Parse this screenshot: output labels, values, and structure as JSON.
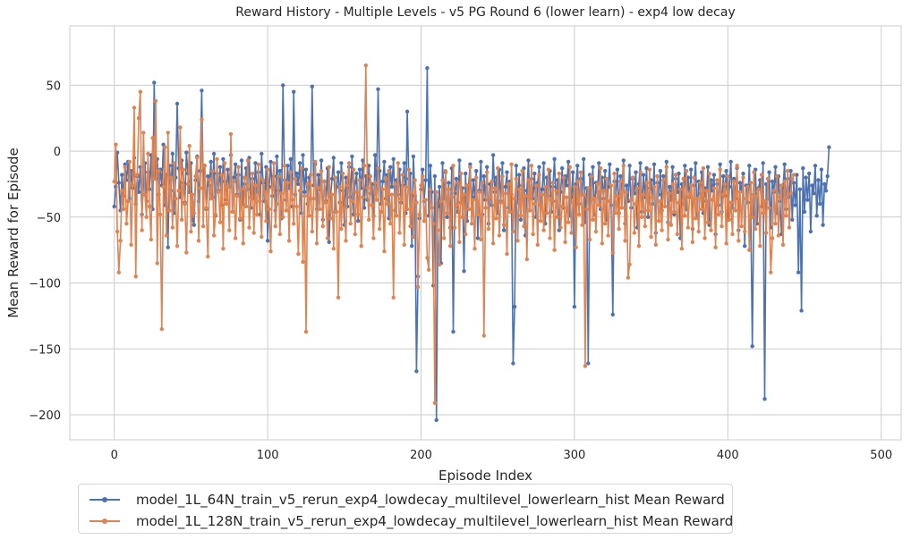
{
  "chart_data": {
    "type": "line",
    "title": "Reward History - Multiple Levels - v5 PG Round 6 (lower learn) - exp4 low decay",
    "xlabel": "Episode Index",
    "ylabel": "Mean Reward for Episode",
    "xlim": [
      -29,
      513
    ],
    "ylim": [
      -219,
      95
    ],
    "xticks": [
      0,
      100,
      200,
      300,
      400,
      500
    ],
    "yticks": [
      -200,
      -150,
      -100,
      -50,
      0,
      50
    ],
    "grid": true,
    "legend_position": "below-left",
    "series": [
      {
        "name": "model_1L_64N_train_v5_rerun_exp4_lowdecay_multilevel_lowerlearn_hist Mean Reward",
        "color": "#4c72b0",
        "values": [
          -42,
          -27,
          -1,
          -24,
          -45,
          -18,
          -34,
          -10,
          -22,
          -8,
          -36,
          -15,
          -28,
          -5,
          -40,
          -19,
          -31,
          -12,
          -48,
          -25,
          -9,
          -38,
          -16,
          -29,
          -3,
          -44,
          52,
          -21,
          -6,
          -33,
          -14,
          -26,
          5,
          -41,
          -18,
          -73,
          -11,
          -30,
          -2,
          -47,
          -20,
          36,
          -13,
          -35,
          -7,
          -24,
          -39,
          -1,
          -17,
          -31,
          -9,
          -52,
          -56,
          -22,
          -4,
          -38,
          -15,
          46,
          -28,
          -11,
          -44,
          -19,
          -26,
          -8,
          -35,
          -2,
          -49,
          -17,
          -30,
          -12,
          -41,
          -6,
          -23,
          -37,
          -14,
          -27,
          -3,
          -46,
          -20,
          -10,
          -33,
          -18,
          -52,
          -7,
          -40,
          -25,
          -13,
          -29,
          -5,
          -43,
          -21,
          -36,
          -9,
          -31,
          -16,
          -48,
          -2,
          -24,
          -38,
          -12,
          -68,
          -27,
          -8,
          -34,
          -19,
          -45,
          -4,
          -30,
          -15,
          -51,
          50,
          -22,
          -37,
          -11,
          -28,
          -6,
          -42,
          45,
          -33,
          -17,
          -25,
          -9,
          -47,
          -3,
          -31,
          -14,
          -40,
          -20,
          -36,
          49,
          -26,
          -10,
          -44,
          -18,
          -29,
          -7,
          -52,
          -23,
          -38,
          -13,
          -69,
          -34,
          -21,
          -5,
          -46,
          -27,
          -16,
          -39,
          -9,
          -30,
          -56,
          -20,
          -42,
          -12,
          -35,
          -4,
          -48,
          -24,
          -17,
          -53,
          -14,
          -28,
          -7,
          -43,
          -19,
          -37,
          -11,
          -32,
          -25,
          -49,
          -3,
          -29,
          47,
          -15,
          -40,
          -23,
          -8,
          -36,
          -18,
          -51,
          -12,
          -27,
          -6,
          -45,
          -22,
          -33,
          -14,
          -39,
          -26,
          -9,
          -47,
          30,
          -21,
          -17,
          -72,
          -4,
          -34,
          -167,
          -95,
          -51,
          -29,
          -14,
          -38,
          -22,
          63,
          -49,
          -11,
          -31,
          -102,
          -19,
          -204,
          -42,
          -27,
          -85,
          -9,
          -36,
          -16,
          -50,
          -24,
          -58,
          -13,
          -137,
          -32,
          -21,
          -46,
          -7,
          -39,
          -28,
          -91,
          -17,
          -53,
          -26,
          -10,
          -44,
          -22,
          -35,
          -15,
          -66,
          -30,
          -8,
          -48,
          -19,
          -37,
          -12,
          -55,
          -25,
          -41,
          -3,
          -31,
          -20,
          -47,
          -14,
          -38,
          -9,
          -60,
          -27,
          -16,
          -43,
          -23,
          -33,
          -161,
          -118,
          -11,
          -39,
          -18,
          -52,
          -26,
          -13,
          -64,
          -30,
          -7,
          -45,
          -21,
          -36,
          -17,
          -50,
          -24,
          -12,
          -41,
          -29,
          -9,
          -55,
          -20,
          -34,
          -15,
          -46,
          -27,
          -6,
          -38,
          -22,
          -60,
          -31,
          -13,
          -43,
          -19,
          -26,
          -8,
          -49,
          -35,
          -16,
          -118,
          -25,
          -11,
          -40,
          -21,
          -33,
          -6,
          -54,
          -28,
          -161,
          -18,
          -37,
          -12,
          -48,
          -24,
          -31,
          -9,
          -44,
          -20,
          -36,
          -15,
          -52,
          -27,
          -10,
          -41,
          -124,
          -23,
          -34,
          -14,
          -47,
          -19,
          -29,
          -7,
          -55,
          -26,
          -38,
          -11,
          -43,
          -21,
          -32,
          -16,
          -58,
          -25,
          -9,
          -46,
          -18,
          -35,
          -13,
          -50,
          -28,
          -22,
          -40,
          -10,
          -62,
          -24,
          -33,
          -15,
          -45,
          -19,
          -29,
          -8,
          -54,
          -27,
          -37,
          -12,
          -48,
          -21,
          -31,
          -17,
          -66,
          -25,
          -40,
          -11,
          -44,
          -20,
          -35,
          -14,
          -59,
          -26,
          -9,
          -50,
          -23,
          -32,
          -16,
          -47,
          -28,
          -38,
          -12,
          -56,
          -22,
          -30,
          -18,
          -63,
          -25,
          -41,
          -10,
          -46,
          -19,
          -34,
          -15,
          -52,
          -27,
          -8,
          -43,
          -21,
          -36,
          -13,
          -60,
          -24,
          -30,
          -17,
          -72,
          -26,
          -39,
          -11,
          -49,
          -148,
          -33,
          -14,
          -55,
          -28,
          -22,
          -42,
          -9,
          -188,
          -25,
          -36,
          -16,
          -58,
          -23,
          -31,
          -12,
          -47,
          -19,
          -38,
          -63,
          -27,
          -10,
          -44,
          -21,
          -35,
          -15,
          -52,
          -24,
          -41,
          -18,
          -92,
          -29,
          -121,
          -13,
          -46,
          -20,
          -37,
          -17,
          -61,
          -26,
          -32,
          -11,
          -49,
          -22,
          -40,
          -14,
          -56,
          -25,
          -30,
          -19,
          3
        ]
      },
      {
        "name": "model_1L_128N_train_v5_rerun_exp4_lowdecay_multilevel_lowerlearn_hist Mean Reward",
        "color": "#dd8452",
        "values": [
          -23,
          5,
          -61,
          -92,
          -68,
          -30,
          -44,
          -12,
          -55,
          -38,
          -8,
          -71,
          -26,
          33,
          -95,
          -18,
          25,
          45,
          -60,
          14,
          -33,
          -50,
          -2,
          -42,
          -67,
          10,
          -21,
          38,
          -85,
          -15,
          -48,
          -135,
          -27,
          3,
          -64,
          14,
          -45,
          -20,
          -58,
          -9,
          -36,
          -72,
          -30,
          18,
          -52,
          -14,
          -40,
          -77,
          -25,
          4,
          -61,
          -33,
          -47,
          -19,
          -5,
          -68,
          -28,
          24,
          -57,
          -11,
          -43,
          -80,
          -22,
          -36,
          -15,
          -64,
          -48,
          -6,
          -31,
          -54,
          -18,
          -74,
          -9,
          -40,
          -27,
          -60,
          13,
          -46,
          -23,
          -66,
          -34,
          -12,
          -51,
          -29,
          -70,
          -20,
          -42,
          -7,
          -58,
          -35,
          -17,
          -62,
          -26,
          -48,
          -10,
          -38,
          -65,
          -22,
          -31,
          -53,
          -14,
          -44,
          -76,
          -28,
          -9,
          -57,
          -40,
          -19,
          -63,
          -32,
          -50,
          -11,
          -45,
          -24,
          -68,
          -16,
          -37,
          -55,
          -21,
          -42,
          -78,
          -30,
          -13,
          -84,
          -34,
          -137,
          -25,
          -49,
          -18,
          -61,
          -36,
          -8,
          -70,
          -28,
          -44,
          -15,
          -57,
          -23,
          -39,
          -66,
          -12,
          -51,
          -33,
          -74,
          -20,
          -46,
          -111,
          -27,
          -59,
          -17,
          -43,
          -68,
          -26,
          -9,
          -55,
          -38,
          -14,
          -63,
          -31,
          -48,
          -22,
          -72,
          -35,
          -11,
          65,
          -28,
          -52,
          -19,
          -41,
          -66,
          -24,
          -37,
          -13,
          -59,
          -46,
          -29,
          -76,
          -21,
          -40,
          -15,
          -55,
          -33,
          -111,
          -25,
          -49,
          -9,
          -62,
          -36,
          -18,
          -71,
          -27,
          -44,
          -14,
          -57,
          -31,
          -65,
          -22,
          -39,
          -103,
          -48,
          -26,
          -19,
          -53,
          -37,
          -81,
          -90,
          -29,
          -43,
          -55,
          -191,
          -31,
          -60,
          -86,
          -38,
          -22,
          -66,
          -15,
          -47,
          -29,
          -72,
          -35,
          -11,
          -58,
          -41,
          -24,
          -69,
          -17,
          -50,
          -33,
          -63,
          -26,
          -44,
          -12,
          -55,
          -37,
          -74,
          -20,
          -48,
          -31,
          -67,
          -24,
          -140,
          -43,
          -16,
          -59,
          -35,
          -23,
          -70,
          -28,
          -51,
          -13,
          -64,
          -39,
          -19,
          -56,
          -32,
          -78,
          -25,
          -46,
          -10,
          -61,
          -36,
          -21,
          -68,
          -29,
          -49,
          -15,
          -57,
          -34,
          -82,
          -22,
          -45,
          -11,
          -63,
          -40,
          -26,
          -71,
          -18,
          -53,
          -33,
          -60,
          -27,
          -47,
          -14,
          -66,
          -37,
          -24,
          -75,
          -30,
          -50,
          -17,
          -58,
          -42,
          -20,
          -69,
          -35,
          -54,
          -12,
          -62,
          -39,
          -27,
          -73,
          -23,
          -48,
          -16,
          -56,
          -33,
          -163,
          -44,
          -28,
          -67,
          -19,
          -52,
          -36,
          -61,
          -25,
          -41,
          -13,
          -70,
          -30,
          -55,
          -21,
          -64,
          -38,
          -26,
          -77,
          -17,
          -47,
          -34,
          -59,
          -23,
          -43,
          -11,
          -68,
          -31,
          -96,
          -86,
          -37,
          -20,
          -62,
          -40,
          -28,
          -72,
          -16,
          -50,
          -33,
          -57,
          -24,
          -45,
          -14,
          -65,
          -35,
          -27,
          -71,
          -19,
          -53,
          -38,
          -60,
          -22,
          -42,
          -12,
          -67,
          -32,
          -56,
          -25,
          -46,
          -18,
          -63,
          -39,
          -29,
          -74,
          -21,
          -49,
          -15,
          -58,
          -34,
          -26,
          -69,
          -20,
          -51,
          -36,
          -61,
          -24,
          -44,
          -13,
          -66,
          -30,
          -54,
          -17,
          -60,
          -37,
          -28,
          -73,
          -22,
          -48,
          -14,
          -57,
          -33,
          -25,
          -70,
          -19,
          -52,
          -39,
          -63,
          -23,
          -45,
          -11,
          -68,
          -31,
          -57,
          -20,
          -61,
          -36,
          -27,
          -75,
          -24,
          -50,
          -16,
          -59,
          -34,
          -29,
          -72,
          -18,
          -47,
          -38,
          -62,
          -21,
          -43,
          -92,
          -66,
          -30,
          -55,
          -19,
          -64,
          -35,
          -26,
          -71,
          -23,
          -49,
          -15,
          -58,
          -32,
          -21,
          -18
        ]
      }
    ]
  },
  "legend": {
    "items": [
      {
        "label": "model_1L_64N_train_v5_rerun_exp4_lowdecay_multilevel_lowerlearn_hist Mean Reward"
      },
      {
        "label": "model_1L_128N_train_v5_rerun_exp4_lowdecay_multilevel_lowerlearn_hist Mean Reward"
      }
    ]
  }
}
